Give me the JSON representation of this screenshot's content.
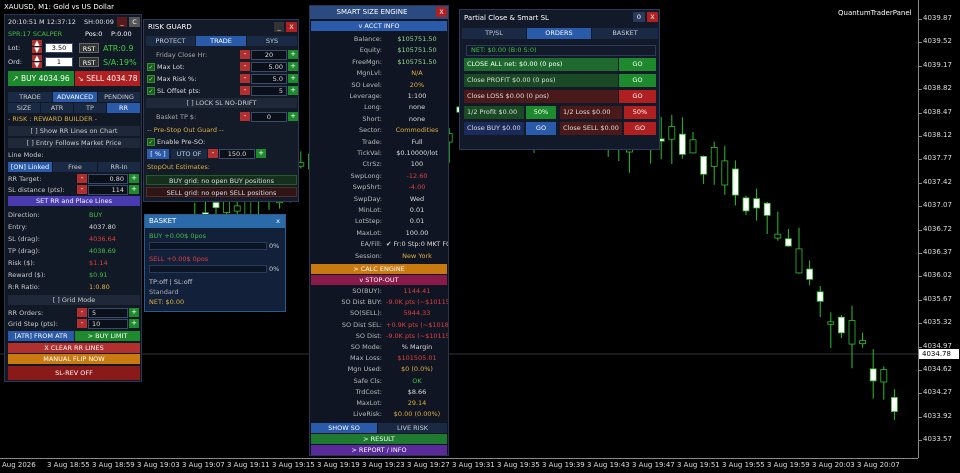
{
  "chart": {
    "symbol_title": "XAUUSD, M1:  Gold vs US Dollar",
    "brand": "QuantumTraderPanel",
    "current_price": "4034.78",
    "price_labels": [
      "4039.87",
      "4039.52",
      "4039.17",
      "4038.82",
      "4038.47",
      "4038.12",
      "4037.77",
      "4037.42",
      "4037.07",
      "4036.72",
      "4036.37",
      "4036.02",
      "4035.67",
      "4035.32",
      "4034.97",
      "4034.62",
      "4034.27",
      "4033.92",
      "4033.57"
    ],
    "time_labels": [
      "Aug 2026",
      "3 Aug 18:55",
      "3 Aug 18:59",
      "3 Aug 19:03",
      "3 Aug 19:07",
      "3 Aug 19:11",
      "3 Aug 19:15",
      "3 Aug 19:19",
      "3 Aug 19:23",
      "3 Aug 19:27",
      "3 Aug 19:31",
      "3 Aug 19:35",
      "3 Aug 19:39",
      "3 Aug 19:43",
      "3 Aug 19:47",
      "3 Aug 19:51",
      "3 Aug 19:55",
      "3 Aug 19:59",
      "3 Aug 20:03",
      "3 Aug 20:07"
    ]
  },
  "left": {
    "time": "20:10:51",
    "m": "M 12:37:12",
    "sh": "SH:00:09",
    "close_btn": "C",
    "spr": "SPR:17 SCALPER",
    "pos": "Pos:0",
    "pd": "P:0.00",
    "lot_label": "Lot:",
    "lot_value": "3.50",
    "rst": "RST",
    "atr": "ATR:0.9",
    "ord_label": "Ord:",
    "ord_value": "1",
    "sa": "S/A:19%",
    "buy_btn": "BUY",
    "buy_price": "4034.96",
    "sell_btn": "SELL",
    "sell_price": "4034.78",
    "tabs1": [
      "TRADE",
      "ADVANCED",
      "PENDING"
    ],
    "tabs2": [
      "SIZE",
      "ATR",
      "TP",
      "RR"
    ],
    "rr_title": "- RISK : REWARD BUILDER -",
    "show_rr": "[ ] Show RR Lines on Chart",
    "entry_follows": "[ ] Entry Follows Market Price",
    "line_mode": "Line Mode:",
    "line_modes": [
      "[ON] Linked",
      "Free",
      "RR-In"
    ],
    "rr_target_label": "RR Target:",
    "rr_target_value": "0.80",
    "sl_dist_label": "SL distance (pts):",
    "sl_dist_value": "114",
    "set_rr": "SET RR and Place Lines",
    "direction_label": "Direction:",
    "direction_value": "BUY",
    "entry_label": "Entry:",
    "entry_value": "4037.80",
    "sl_drag_label": "SL (drag):",
    "sl_drag_value": "4036.64",
    "tp_drag_label": "TP (drag):",
    "tp_drag_value": "4038.69",
    "risk_label": "Risk ($):",
    "risk_value": "$1.14",
    "reward_label": "Reward ($):",
    "reward_value": "$0.91",
    "rr_ratio_label": "R:R Ratio:",
    "rr_ratio_value": "1:0.80",
    "grid_mode": "[ ] Grid Mode",
    "rr_orders_label": "RR Orders:",
    "rr_orders_value": "5",
    "grid_step_label": "Grid Step (pts):",
    "grid_step_value": "10",
    "atr_from": "[ATR] FROM ATR",
    "buy_limit": "> BUY LIMIT",
    "clear_rr": "X CLEAR RR LINES",
    "manual_flip": "MANUAL FLIP NOW",
    "sl_rev": "SL-REV OFF"
  },
  "risk_guard": {
    "title": "RISK GUARD",
    "tabs": [
      "PROTECT",
      "TRADE",
      "SYS"
    ],
    "friday_label": "Friday Close Hr:",
    "friday_value": "20",
    "max_lot_label": "Max Lot:",
    "max_lot_value": "5.00",
    "max_risk_label": "Max Risk %:",
    "max_risk_value": "5.0",
    "sl_offset_label": "SL Offset pts:",
    "sl_offset_value": "5",
    "lock_sl": "[ ] LOCK SL NO-DRIFT",
    "basket_tp_label": "Basket TP $:",
    "basket_tp_value": "0",
    "pre_stopout": "-- Pre-Stop Out Guard --",
    "enable_pre": "Enable Pre-SO:",
    "pct": "[ % ]",
    "uto_of": "UTO OF",
    "uto_value": "150.0",
    "stopout_est": "StopOut Estimates:",
    "buy_grid": "BUY  grid: no open BUY positions",
    "sell_grid": "SELL grid: no open SELL positions"
  },
  "basket": {
    "title": "BASKET",
    "buy_line": "BUY  +0.00$  0pos",
    "buy_pct": "0%",
    "sell_line": "SELL +0.00$  0pos",
    "sell_pct": "0%",
    "tp_sl": "TP:off  |  SL:off",
    "standard": "Standard",
    "net": "NET: $0.00"
  },
  "center": {
    "title": "SMART SIZE ENGINE",
    "acct_info": "v  ACCT INFO",
    "rows": [
      {
        "k": "Balance:",
        "v": "$105751.50",
        "c": "#8fd98f"
      },
      {
        "k": "Equity:",
        "v": "$105751.50",
        "c": "#8fd98f"
      },
      {
        "k": "FreeMgn:",
        "v": "$105751.50",
        "c": "#8fd98f"
      },
      {
        "k": "MgnLvl:",
        "v": "N/A",
        "c": "#e0b040"
      },
      {
        "k": "SO Level:",
        "v": "20%",
        "c": "#e0b040"
      },
      {
        "k": "Leverage:",
        "v": "1:100",
        "c": "#ddd"
      },
      {
        "k": "Long:",
        "v": "none",
        "c": "#ddd"
      },
      {
        "k": "Short:",
        "v": "none",
        "c": "#ddd"
      },
      {
        "k": "Sector:",
        "v": "Commodities",
        "c": "#e0b040"
      },
      {
        "k": "Trade:",
        "v": "Full",
        "c": "#ddd"
      },
      {
        "k": "TickVal:",
        "v": "$0.10000/lot",
        "c": "#ddd"
      },
      {
        "k": "CtrSz:",
        "v": "100",
        "c": "#ddd"
      },
      {
        "k": "SwpLong:",
        "v": "-12.60",
        "c": "#e04040"
      },
      {
        "k": "SwpShrt:",
        "v": "-4.00",
        "c": "#e04040"
      },
      {
        "k": "SwpDay:",
        "v": "Wed",
        "c": "#ddd"
      },
      {
        "k": "MinLot:",
        "v": "0.01",
        "c": "#ddd"
      },
      {
        "k": "LotStep:",
        "v": "0.01",
        "c": "#ddd"
      },
      {
        "k": "MaxLot:",
        "v": "100.00",
        "c": "#ddd"
      },
      {
        "k": "EA/Fill:",
        "v": "✔ Fr:0  Stp:0  MKT FOK",
        "c": "#ddd"
      },
      {
        "k": "Session:",
        "v": "New York",
        "c": "#e0b040"
      }
    ],
    "calc_engine": "> CALC ENGINE",
    "stop_out": "v  STOP-OUT",
    "so_rows": [
      {
        "k": "SO(BUY):",
        "v": "1144.41",
        "c": "#e04040"
      },
      {
        "k": "SO Dist BUY:",
        "v": "-9.0K pts (~$101158.8)",
        "c": "#e04040"
      },
      {
        "k": "SO(SELL):",
        "v": "5944.33",
        "c": "#e04040"
      },
      {
        "k": "SO Dist SEL:",
        "v": "+0.9K pts (~$101830.7)",
        "c": "#e04040"
      },
      {
        "k": "SO Dist:",
        "v": "-9.0K pts (~$101158.8)",
        "c": "#e04040"
      },
      {
        "k": "SO Mode:",
        "v": "% Margin",
        "c": "#ddd"
      },
      {
        "k": "Max Loss:",
        "v": "$101505.01",
        "c": "#e04040"
      },
      {
        "k": "Mgn Used:",
        "v": "$0 (0.0%)",
        "c": "#e0b040"
      },
      {
        "k": "Safe Cls:",
        "v": "OK",
        "c": "#40c040"
      },
      {
        "k": "TrdCost:",
        "v": "$8.66",
        "c": "#ddd"
      },
      {
        "k": "MaxLot:",
        "v": "29.14",
        "c": "#e0b040"
      },
      {
        "k": "LiveRisk:",
        "v": "$0.00 (0.00%)",
        "c": "#e0b040"
      }
    ],
    "show_so": "SHOW SO",
    "live_risk": "LIVE RISK",
    "result": "> RESULT",
    "report": "> REPORT / INFO"
  },
  "partial_close": {
    "title": "Partial Close & Smart SL",
    "count": "0",
    "tabs": [
      "TP/SL",
      "ORDERS",
      "BASKET"
    ],
    "net": "NET: $0.00  (B:0 S:0)",
    "close_all": "CLOSE ALL  net: $0.00  (0 pos)",
    "close_profit": "Close PROFIT  $0.00  (0 pos)",
    "close_loss": "Close LOSS   $0.00  (0 pos)",
    "go": "GO",
    "half_profit": "1/2 Profit  $0.00",
    "pct50": "50%",
    "half_loss": "1/2 Loss   $0.00",
    "close_buy": "Close BUY $0.00",
    "close_sell": "Close SELL $0.00"
  }
}
